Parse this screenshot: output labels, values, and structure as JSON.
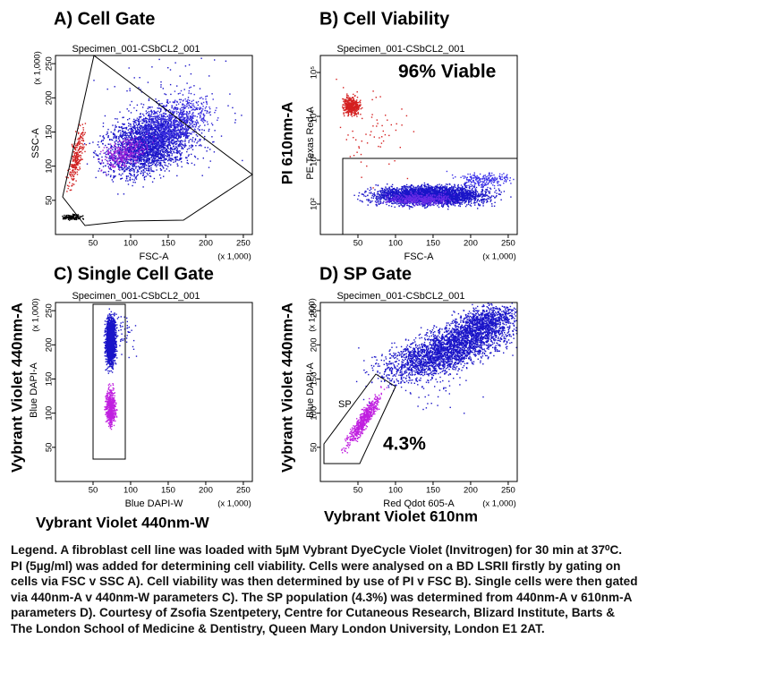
{
  "panels": [
    {
      "title": "A) Cell Gate",
      "specimen": "Specimen_001-CSbCL2_001",
      "x_label": "FSC-A",
      "x_scale": "(x 1,000)",
      "y_label": "SSC-A",
      "y_scale": "(x 1,000)",
      "x_ticks": [
        50,
        100,
        150,
        200,
        250
      ],
      "y_ticks": [
        50,
        100,
        150,
        200,
        250
      ]
    },
    {
      "title": "B) Cell Viability",
      "specimen": "Specimen_001-CSbCL2_001",
      "x_label": "FSC-A",
      "x_scale": "(x 1,000)",
      "y_label": "PE-Texas Red-A",
      "y_outer_label": "PI 610nm-A",
      "x_ticks": [
        50,
        100,
        150,
        200,
        250
      ],
      "y_ticks": [
        "10²",
        "10³",
        "10⁴",
        "10⁵"
      ],
      "annotation": "96% Viable"
    },
    {
      "title": "C) Single Cell Gate",
      "specimen": "Specimen_001-CSbCL2_001",
      "x_label": "Blue DAPI-W",
      "x_scale": "(x 1,000)",
      "y_label": "Blue DAPI-A",
      "y_scale": "(x 1,000)",
      "y_outer_label": "Vybrant Violet 440nm-A",
      "x_outer_label": "Vybrant Violet 440nm-W",
      "x_ticks": [
        50,
        100,
        150,
        200,
        250
      ],
      "y_ticks": [
        50,
        100,
        150,
        200,
        250
      ]
    },
    {
      "title": "D) SP Gate",
      "specimen": "Specimen_001-CSbCL2_001",
      "x_label": "Red Qdot 605-A",
      "x_scale": "(x 1,000)",
      "y_label": "Blue DAPI-A",
      "y_scale": "(x 1,000)",
      "y_outer_label": "Vybrant Violet 440nm-A",
      "x_outer_label": "Vybrant Violet 610nm",
      "x_ticks": [
        50,
        100,
        150,
        200,
        250
      ],
      "y_ticks": [
        50,
        100,
        150,
        200,
        250
      ],
      "gate_label": "SP",
      "annotation": "4.3%"
    }
  ],
  "legend": [
    "Legend. A fibroblast cell line was loaded with 5µM Vybrant DyeCycle Violet (Invitrogen) for 30 min at 37⁰C.",
    "PI (5µg/ml) was added for determining cell viability. Cells were analysed on a BD LSRII firstly by gating on",
    "cells via FSC v SSC A). Cell viability was then determined by use of PI v FSC B). Single cells were then gated",
    "via 440nm-A v 440nm-W parameters C). The SP population (4.3%) was determined from 440nm-A v 610nm-A",
    "parameters D). Courtesy of Zsofia Szentpetery, Centre for Cutaneous Research, Blizard Institute, Barts &",
    "The London School of Medicine & Dentistry, Queen Mary London University, London E1 2AT."
  ]
}
